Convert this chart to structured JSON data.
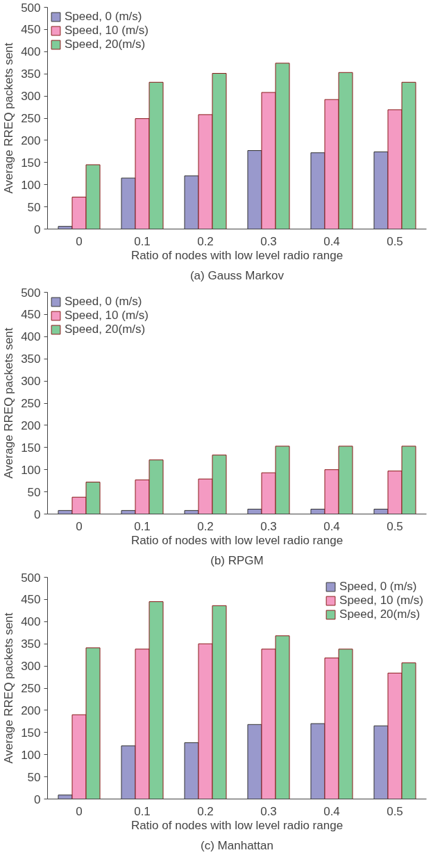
{
  "chart_data": [
    {
      "type": "bar",
      "title": "(a) Gauss Markov",
      "xlabel": "Ratio of nodes with low level radio range",
      "ylabel": "Average RREQ packets sent",
      "categories": [
        "0",
        "0.1",
        "0.2",
        "0.3",
        "0.4",
        "0.5"
      ],
      "ylim": [
        0,
        500
      ],
      "yticks": [
        0,
        50,
        100,
        150,
        200,
        250,
        300,
        350,
        400,
        450,
        500
      ],
      "legend": "top left",
      "series": [
        {
          "name": "Speed, 0 (m/s)",
          "color": "#9999cc",
          "values": [
            6,
            115,
            120,
            177,
            172,
            174
          ]
        },
        {
          "name": "Speed, 10 (m/s)",
          "color": "#f49ac2",
          "values": [
            72,
            249,
            258,
            308,
            292,
            269
          ]
        },
        {
          "name": "Speed, 20(m/s)",
          "color": "#80cc99",
          "values": [
            145,
            331,
            351,
            374,
            353,
            331
          ]
        }
      ]
    },
    {
      "type": "bar",
      "title": "(b) RPGM",
      "xlabel": "Ratio of nodes with low level radio range",
      "ylabel": "Average RREQ packets sent",
      "categories": [
        "0",
        "0.1",
        "0.2",
        "0.3",
        "0.4",
        "0.5"
      ],
      "ylim": [
        0,
        500
      ],
      "yticks": [
        0,
        50,
        100,
        150,
        200,
        250,
        300,
        350,
        400,
        450,
        500
      ],
      "legend": "top left",
      "series": [
        {
          "name": "Speed, 0 (m/s)",
          "color": "#9999cc",
          "values": [
            8,
            8,
            8,
            11,
            11,
            11
          ]
        },
        {
          "name": "Speed, 10 (m/s)",
          "color": "#f49ac2",
          "values": [
            38,
            77,
            79,
            93,
            100,
            97
          ]
        },
        {
          "name": "Speed, 20(m/s)",
          "color": "#80cc99",
          "values": [
            72,
            122,
            133,
            153,
            153,
            153
          ]
        }
      ]
    },
    {
      "type": "bar",
      "title": "(c) Manhattan",
      "xlabel": "Ratio of nodes with low level radio range",
      "ylabel": "Average RREQ packets sent",
      "categories": [
        "0",
        "0.1",
        "0.2",
        "0.3",
        "0.4",
        "0.5"
      ],
      "ylim": [
        0,
        500
      ],
      "yticks": [
        0,
        50,
        100,
        150,
        200,
        250,
        300,
        350,
        400,
        450,
        500
      ],
      "legend": "top right",
      "series": [
        {
          "name": "Speed, 0 (m/s)",
          "color": "#9999cc",
          "values": [
            9,
            120,
            127,
            168,
            170,
            165
          ]
        },
        {
          "name": "Speed, 10 (m/s)",
          "color": "#f49ac2",
          "values": [
            190,
            338,
            350,
            338,
            318,
            284
          ]
        },
        {
          "name": "Speed, 20(m/s)",
          "color": "#80cc99",
          "values": [
            341,
            445,
            436,
            368,
            338,
            307
          ]
        }
      ]
    }
  ]
}
